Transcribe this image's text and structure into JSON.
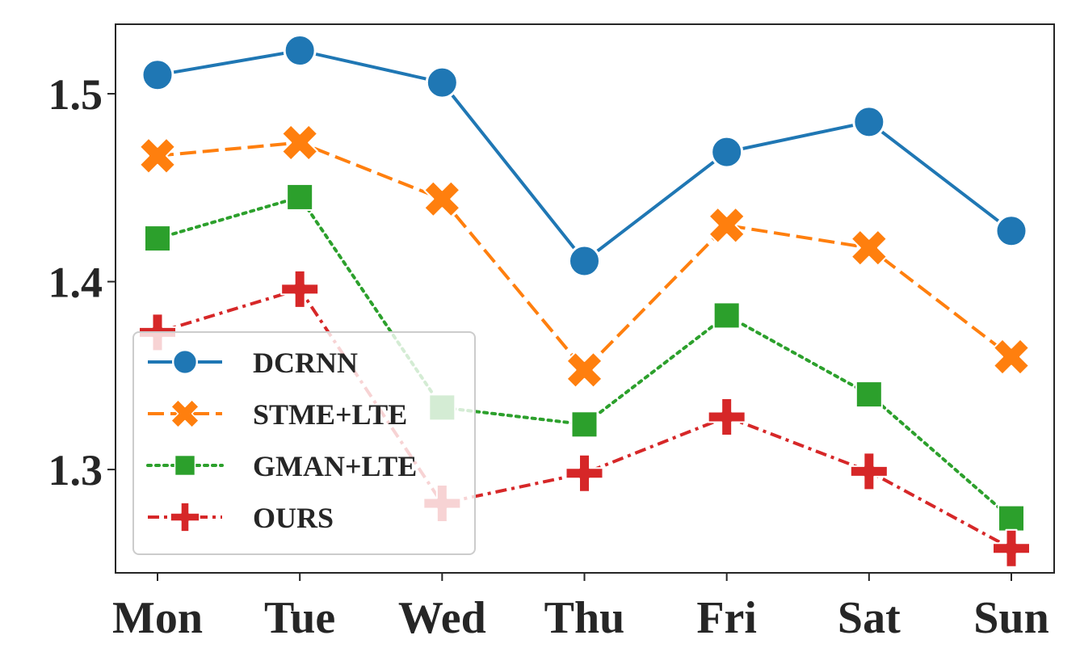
{
  "chart_data": {
    "type": "line",
    "title": "",
    "xlabel": "",
    "ylabel": "",
    "categories": [
      "Mon",
      "Tue",
      "Wed",
      "Thu",
      "Fri",
      "Sat",
      "Sun"
    ],
    "ylim": [
      1.245,
      1.537
    ],
    "yticks": [
      "1.3",
      "1.4",
      "1.5"
    ],
    "grid": false,
    "legend_position": "lower-left",
    "series": [
      {
        "name": "DCRNN",
        "color": "#1f77b4",
        "marker": "circle",
        "dash": "solid",
        "values": [
          1.51,
          1.523,
          1.506,
          1.411,
          1.469,
          1.485,
          1.427
        ]
      },
      {
        "name": "STME+LTE",
        "color": "#ff7f0e",
        "marker": "x",
        "dash": "dashed",
        "values": [
          1.467,
          1.474,
          1.444,
          1.353,
          1.43,
          1.418,
          1.36
        ]
      },
      {
        "name": "GMAN+LTE",
        "color": "#2ca02c",
        "marker": "square",
        "dash": "dotted",
        "values": [
          1.423,
          1.445,
          1.333,
          1.324,
          1.382,
          1.34,
          1.274
        ]
      },
      {
        "name": "OURS",
        "color": "#d62728",
        "marker": "plus",
        "dash": "dashdot",
        "values": [
          1.373,
          1.396,
          1.282,
          1.298,
          1.328,
          1.299,
          1.258
        ]
      }
    ]
  }
}
